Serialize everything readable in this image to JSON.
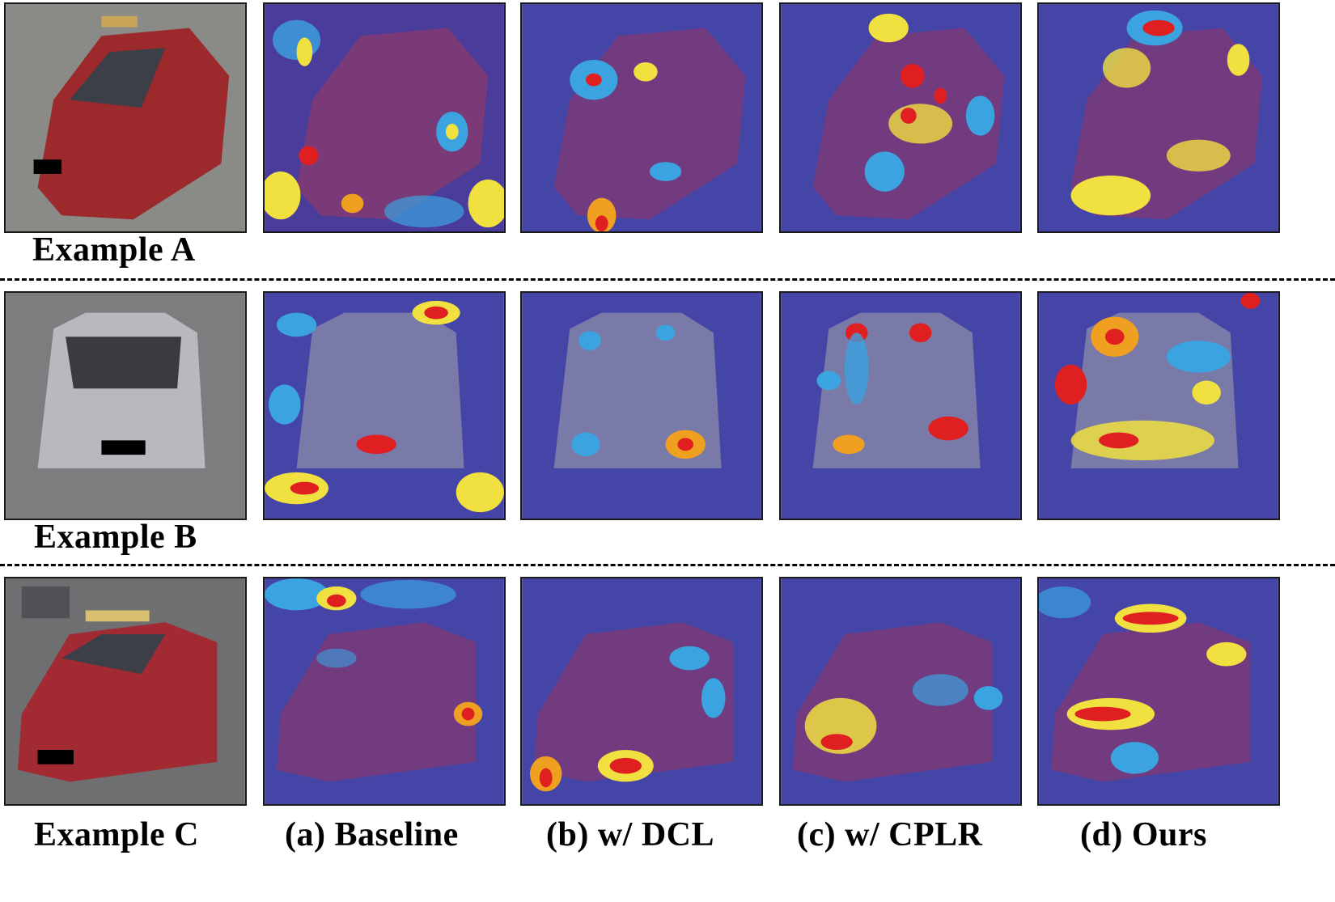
{
  "rows": [
    {
      "example_label": "Example A",
      "vehicle": "red taxi sedan, rear three-quarter view",
      "photo_colors": {
        "bg": "#8a8a86",
        "car": "#9c2a2c"
      }
    },
    {
      "example_label": "Example B",
      "vehicle": "silver SUV, front view",
      "photo_colors": {
        "bg": "#7d7d80",
        "car": "#b8b8bd"
      }
    },
    {
      "example_label": "Example C",
      "vehicle": "red taxi sedan, front three-quarter view",
      "photo_colors": {
        "bg": "#6f6f72",
        "car": "#a22a32"
      }
    }
  ],
  "column_labels": [
    "(a) Baseline",
    "(b) w/ DCL",
    "(c) w/ CPLR",
    "(d) Ours"
  ],
  "heatmap_colors": {
    "base": "#4545a8",
    "low": "#3aa3e0",
    "mid": "#f0e040",
    "high": "#e02020"
  }
}
